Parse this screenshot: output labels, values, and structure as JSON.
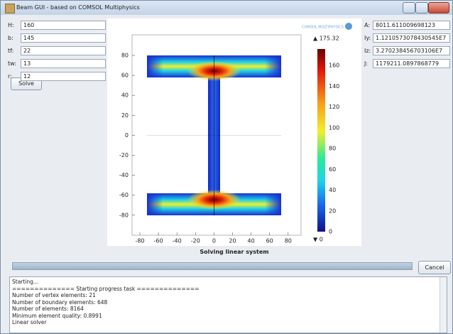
{
  "window": {
    "title": "Beam GUI - based on COMSOL Multiphysics"
  },
  "inputs": [
    {
      "label": "H:",
      "value": "160"
    },
    {
      "label": "b:",
      "value": "145"
    },
    {
      "label": "tf:",
      "value": "22"
    },
    {
      "label": "tw:",
      "value": "13"
    },
    {
      "label": "r:",
      "value": "12"
    }
  ],
  "solve_button": "Solve",
  "outputs": [
    {
      "label": "A:",
      "value": "8011.611009698123"
    },
    {
      "label": "Iy:",
      "value": "1.1210573078430545E7"
    },
    {
      "label": "Iz:",
      "value": "3.270238456703106E7"
    },
    {
      "label": "J:",
      "value": "1179211.0897868779"
    }
  ],
  "plot": {
    "logo": "COMSOL MULTIPHYSICS",
    "x_ticks": [
      "-80",
      "-60",
      "-40",
      "-20",
      "0",
      "20",
      "40",
      "60",
      "80"
    ],
    "y_ticks": [
      "80",
      "60",
      "40",
      "20",
      "0",
      "-20",
      "-40",
      "-60",
      "-80"
    ],
    "colorbar": {
      "max": "▲ 175.32",
      "min": "▼ 0",
      "ticks": [
        "160",
        "140",
        "120",
        "100",
        "80",
        "60",
        "40",
        "20",
        "0"
      ]
    },
    "status": "Solving linear system"
  },
  "cancel_button": "Cancel",
  "log": [
    "Starting...",
    "============== Starting progress task ==============",
    "Number of vertex elements: 21",
    "Number of boundary elements: 648",
    "Number of elements: 8164",
    "Minimum element quality: 0.8991",
    "Linear solver"
  ]
}
